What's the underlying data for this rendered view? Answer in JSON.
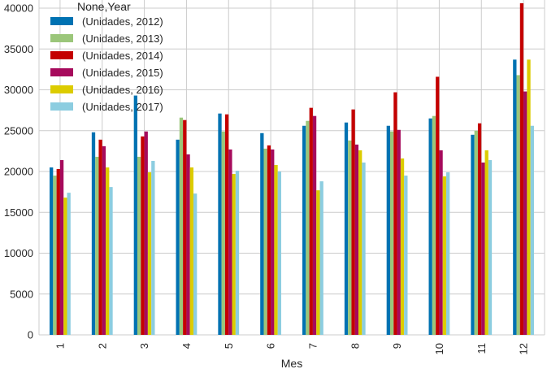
{
  "chart_data": {
    "type": "bar",
    "title": "",
    "xlabel": "Mes",
    "ylabel": "",
    "categories": [
      "1",
      "2",
      "3",
      "4",
      "5",
      "6",
      "7",
      "8",
      "9",
      "10",
      "11",
      "12"
    ],
    "ylim": [
      0,
      41000
    ],
    "yticks": [
      0,
      5000,
      10000,
      15000,
      20000,
      25000,
      30000,
      35000,
      40000
    ],
    "ytick_labels": [
      "0",
      "5000",
      "10000",
      "15000",
      "20000",
      "25000",
      "30000",
      "35000",
      "40000"
    ],
    "grid": true,
    "legend": {
      "title": "None,Year",
      "placement": "upper-left"
    },
    "series": [
      {
        "name": "(Unidades, 2012)",
        "color": "#0072b2",
        "values": [
          20500,
          24800,
          29300,
          23900,
          27100,
          24700,
          25600,
          26000,
          25600,
          26500,
          24500,
          33700
        ]
      },
      {
        "name": "(Unidades, 2013)",
        "color": "#9bc67a",
        "values": [
          19500,
          21800,
          21800,
          26600,
          24900,
          22800,
          26200,
          23800,
          24900,
          26800,
          25000,
          31800
        ]
      },
      {
        "name": "(Unidades, 2014)",
        "color": "#c40000",
        "values": [
          20300,
          23900,
          24300,
          26300,
          27000,
          23200,
          27800,
          27600,
          29700,
          31600,
          25900,
          40600
        ]
      },
      {
        "name": "(Unidades, 2015)",
        "color": "#a60a5c",
        "values": [
          21400,
          23100,
          24900,
          22100,
          22700,
          22700,
          26800,
          23300,
          25100,
          22600,
          21100,
          29800
        ]
      },
      {
        "name": "(Unidades, 2016)",
        "color": "#dccc00",
        "values": [
          16800,
          20500,
          19900,
          20500,
          19700,
          20800,
          17700,
          22600,
          21600,
          19400,
          22600,
          33700
        ]
      },
      {
        "name": "(Unidades, 2017)",
        "color": "#8ccde0",
        "values": [
          17400,
          18100,
          21300,
          17300,
          20100,
          20000,
          18800,
          21100,
          19500,
          19900,
          21400,
          25600
        ]
      }
    ]
  }
}
